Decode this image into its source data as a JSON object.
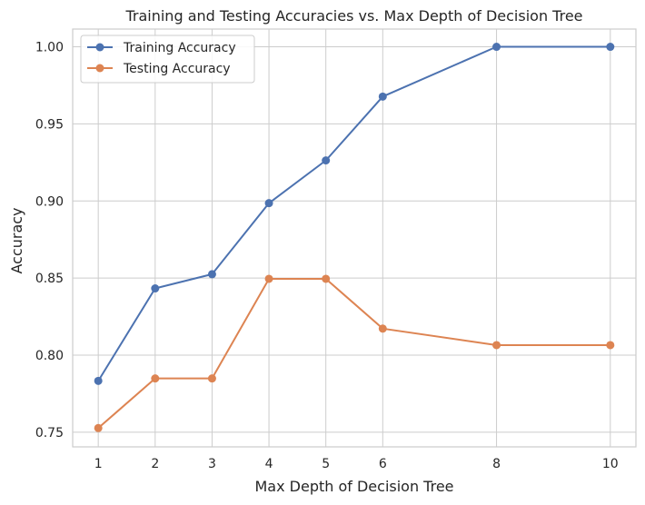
{
  "chart_data": {
    "type": "line",
    "title": "Training and Testing Accuracies vs. Max Depth of Decision Tree",
    "xlabel": "Max Depth of Decision Tree",
    "ylabel": "Accuracy",
    "x": [
      1,
      2,
      3,
      4,
      5,
      6,
      8,
      10
    ],
    "x_ticks": [
      "1",
      "2",
      "3",
      "4",
      "5",
      "6",
      "8",
      "10"
    ],
    "y_ticks": [
      "0.75",
      "0.80",
      "0.85",
      "0.90",
      "0.95",
      "1.00"
    ],
    "xlim": [
      0.55,
      10.45
    ],
    "ylim": [
      0.7405,
      1.0115
    ],
    "grid": true,
    "legend_position": "top-left",
    "series": [
      {
        "name": "Training Accuracy",
        "color": "#4c72b0",
        "values": [
          0.7833,
          0.8433,
          0.8525,
          0.8986,
          0.9263,
          0.9677,
          1.0,
          1.0
        ]
      },
      {
        "name": "Testing Accuracy",
        "color": "#dd8452",
        "values": [
          0.7527,
          0.7849,
          0.7849,
          0.8495,
          0.8495,
          0.8172,
          0.8065,
          0.8065
        ]
      }
    ]
  }
}
